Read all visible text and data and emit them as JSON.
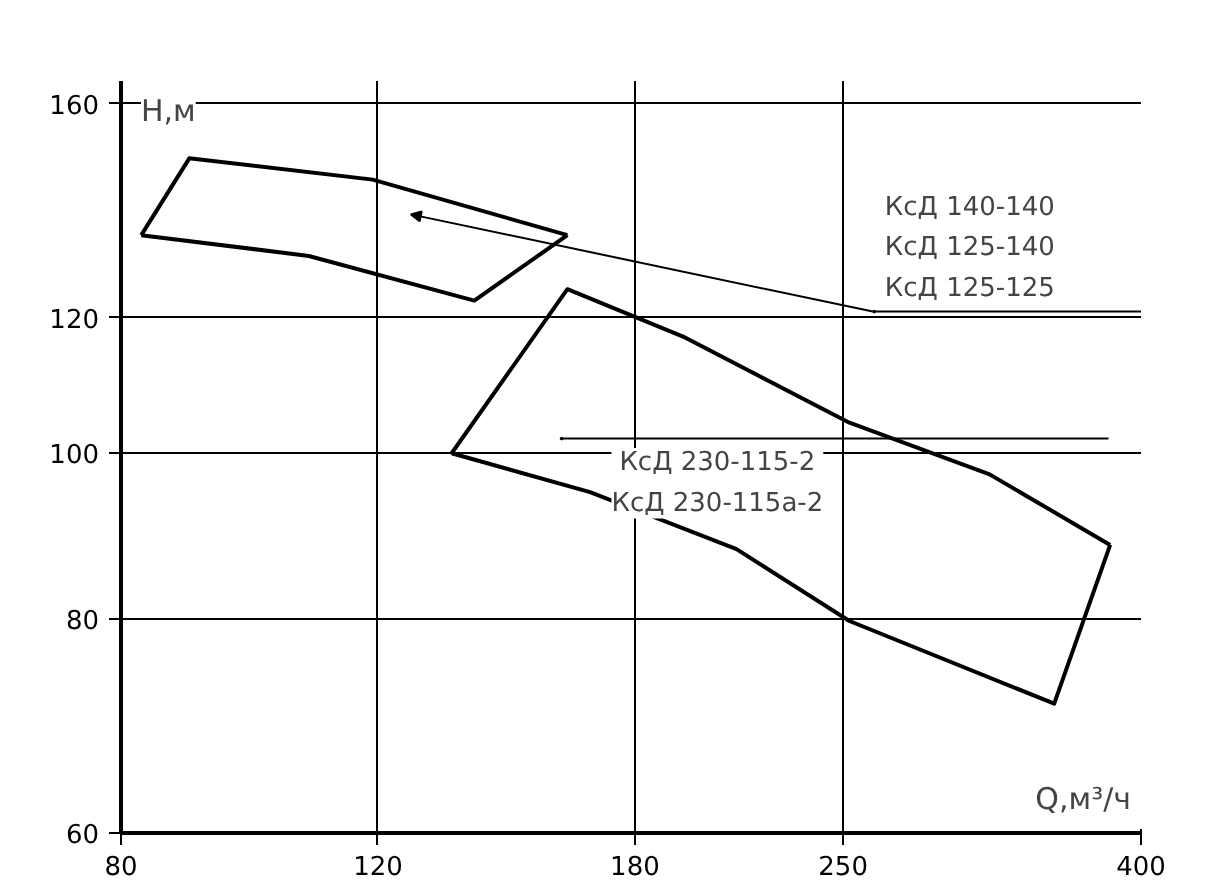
{
  "chart_data": {
    "type": "line",
    "xlabel": "Q,м³/ч",
    "ylabel": "H,м",
    "log": "xy",
    "xlim": [
      80,
      400
    ],
    "ylim": [
      60,
      165
    ],
    "xticks": [
      80,
      120,
      180,
      250,
      400
    ],
    "yticks": [
      60,
      80,
      100,
      120,
      160
    ],
    "grid": true,
    "marker": "none",
    "line_style": "solid",
    "series": [
      {
        "color": "#000000",
        "x": [
          82.6,
          89.1,
          119,
          161.8
        ],
        "values": [
          134.1,
          148.7,
          144.5,
          134.1
        ]
      },
      {
        "color": "#000000",
        "x": [
          82.6,
          107.6,
          139.7,
          161.8
        ],
        "values": [
          134.1,
          130.4,
          122.8,
          134.1
        ]
      },
      {
        "color": "#000000",
        "x": [
          134.8,
          161.8,
          194.2,
          252.5,
          315,
          381
        ],
        "values": [
          100,
          124.7,
          117,
          104.2,
          97.2,
          88.4
        ]
      },
      {
        "color": "#000000",
        "x": [
          134.8,
          167.7,
          211.3,
          252.5,
          348.8,
          381
        ],
        "values": [
          100,
          94.9,
          87.9,
          79.8,
          71.4,
          88.4
        ]
      }
    ],
    "annotations": [
      "КсД 140-140\nКсД 125-140\nКсД 125-125",
      "КсД 230-115-2\nКсД 230-115а-2"
    ]
  }
}
